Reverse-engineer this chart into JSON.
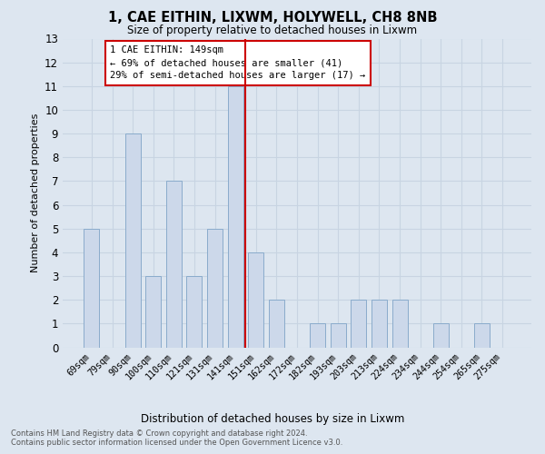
{
  "title1": "1, CAE EITHIN, LIXWM, HOLYWELL, CH8 8NB",
  "title2": "Size of property relative to detached houses in Lixwm",
  "xlabel": "Distribution of detached houses by size in Lixwm",
  "ylabel": "Number of detached properties",
  "categories": [
    "69sqm",
    "79sqm",
    "90sqm",
    "100sqm",
    "110sqm",
    "121sqm",
    "131sqm",
    "141sqm",
    "151sqm",
    "162sqm",
    "172sqm",
    "182sqm",
    "193sqm",
    "203sqm",
    "213sqm",
    "224sqm",
    "234sqm",
    "244sqm",
    "254sqm",
    "265sqm",
    "275sqm"
  ],
  "values": [
    5,
    0,
    9,
    3,
    7,
    3,
    5,
    11,
    4,
    2,
    0,
    1,
    1,
    2,
    2,
    2,
    0,
    1,
    0,
    1,
    0
  ],
  "bar_color": "#ccd8ea",
  "bar_edge_color": "#8aabcc",
  "vline_color": "#cc0000",
  "vline_index": 8,
  "ylim": [
    0,
    13
  ],
  "yticks": [
    0,
    1,
    2,
    3,
    4,
    5,
    6,
    7,
    8,
    9,
    10,
    11,
    12,
    13
  ],
  "annotation_text": "1 CAE EITHIN: 149sqm\n← 69% of detached houses are smaller (41)\n29% of semi-detached houses are larger (17) →",
  "annotation_box_color": "#ffffff",
  "annotation_box_edge": "#cc0000",
  "footer_text": "Contains HM Land Registry data © Crown copyright and database right 2024.\nContains public sector information licensed under the Open Government Licence v3.0.",
  "grid_color": "#c8d4e2",
  "background_color": "#dde6f0"
}
